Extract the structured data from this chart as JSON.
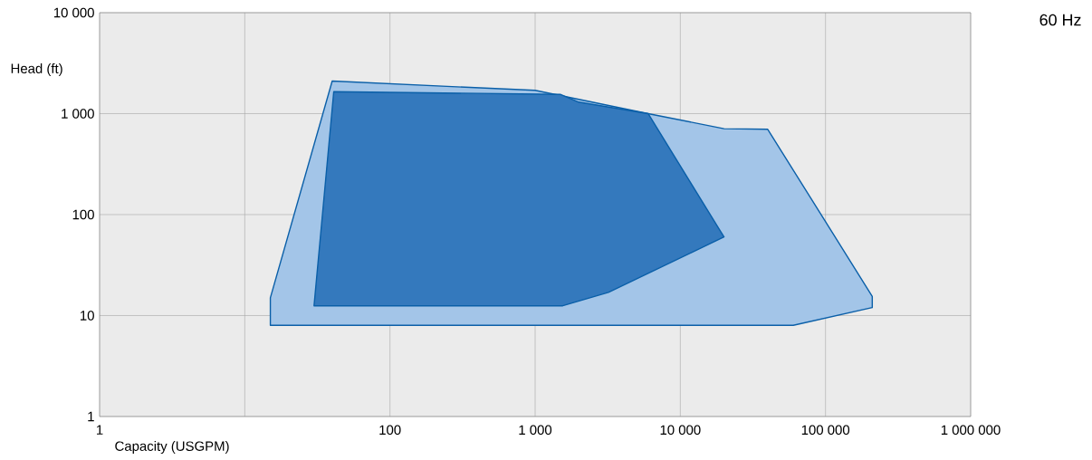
{
  "chart_data": {
    "type": "area",
    "xlabel": "Capacity (USGPM)",
    "ylabel": "Head (ft)",
    "annotations": [
      "60 Hz"
    ],
    "log": "xy",
    "grid": true,
    "xlim": [
      1,
      1000000
    ],
    "ylim": [
      1,
      10000
    ],
    "xticks": [
      1,
      {
        "value": 10,
        "label": null
      },
      100,
      {
        "value": 1000,
        "label": "1 000"
      },
      {
        "value": 10000,
        "label": "10 000"
      },
      {
        "value": 100000,
        "label": "100 000"
      },
      {
        "value": 1000000,
        "label": "1 000 000"
      }
    ],
    "yticks": [
      1,
      10,
      100,
      {
        "value": 1000,
        "label": "1 000"
      },
      {
        "value": 10000,
        "label": "10 000"
      }
    ],
    "series": [
      {
        "color": "#a3c5e8",
        "x": [
          15,
          15,
          40,
          1000,
          6000,
          20000,
          40000,
          210000,
          210000,
          60000
        ],
        "values": [
          8,
          15,
          2100,
          1700,
          1000,
          710,
          700,
          15.5,
          12,
          8
        ]
      },
      {
        "color": "#3479bd",
        "x": [
          30,
          41,
          1500,
          2000,
          6000,
          20000,
          3200,
          1550
        ],
        "values": [
          12.5,
          1650,
          1550,
          1300,
          1000,
          60,
          17,
          12.5
        ]
      }
    ]
  }
}
